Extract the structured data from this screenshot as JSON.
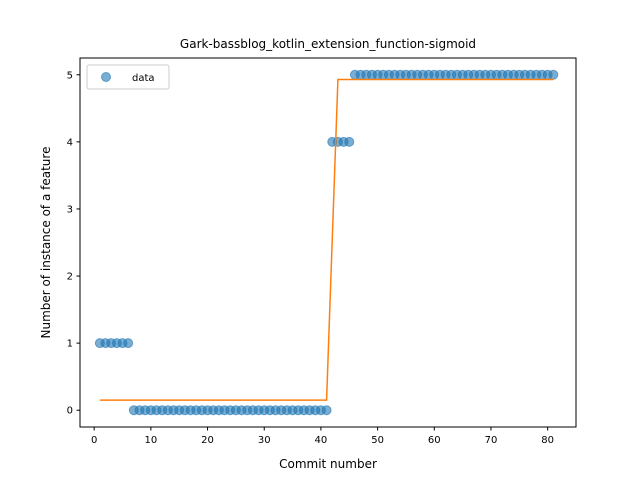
{
  "chart_data": {
    "type": "scatter",
    "title": "Gark-bassblog_kotlin_extension_function-sigmoid",
    "xlabel": "Commit number",
    "ylabel": "Number of instance of a feature",
    "xlim": [
      -2.5,
      85
    ],
    "ylim": [
      -0.25,
      5.25
    ],
    "xticks": [
      0,
      10,
      20,
      30,
      40,
      50,
      60,
      70,
      80
    ],
    "yticks": [
      0,
      1,
      2,
      3,
      4,
      5
    ],
    "grid": false,
    "legend": {
      "placement": "top-left",
      "entries": [
        "data"
      ]
    },
    "series": [
      {
        "name": "data",
        "kind": "scatter",
        "color": "#1f77b4",
        "x": [
          1,
          2,
          3,
          4,
          5,
          6,
          7,
          8,
          9,
          10,
          11,
          12,
          13,
          14,
          15,
          16,
          17,
          18,
          19,
          20,
          21,
          22,
          23,
          24,
          25,
          26,
          27,
          28,
          29,
          30,
          31,
          32,
          33,
          34,
          35,
          36,
          37,
          38,
          39,
          40,
          41,
          42,
          43,
          44,
          45,
          46,
          47,
          48,
          49,
          50,
          51,
          52,
          53,
          54,
          55,
          56,
          57,
          58,
          59,
          60,
          61,
          62,
          63,
          64,
          65,
          66,
          67,
          68,
          69,
          70,
          71,
          72,
          73,
          74,
          75,
          76,
          77,
          78,
          79,
          80,
          81
        ],
        "y": [
          1,
          1,
          1,
          1,
          1,
          1,
          0,
          0,
          0,
          0,
          0,
          0,
          0,
          0,
          0,
          0,
          0,
          0,
          0,
          0,
          0,
          0,
          0,
          0,
          0,
          0,
          0,
          0,
          0,
          0,
          0,
          0,
          0,
          0,
          0,
          0,
          0,
          0,
          0,
          0,
          0,
          4,
          4,
          4,
          4,
          5,
          5,
          5,
          5,
          5,
          5,
          5,
          5,
          5,
          5,
          5,
          5,
          5,
          5,
          5,
          5,
          5,
          5,
          5,
          5,
          5,
          5,
          5,
          5,
          5,
          5,
          5,
          5,
          5,
          5,
          5,
          5,
          5,
          5,
          5,
          5
        ]
      },
      {
        "kind": "line",
        "color": "#ff7f0e",
        "x": [
          1,
          41,
          42,
          43,
          81
        ],
        "y": [
          0.15,
          0.15,
          2.55,
          4.93,
          4.93
        ]
      }
    ]
  }
}
